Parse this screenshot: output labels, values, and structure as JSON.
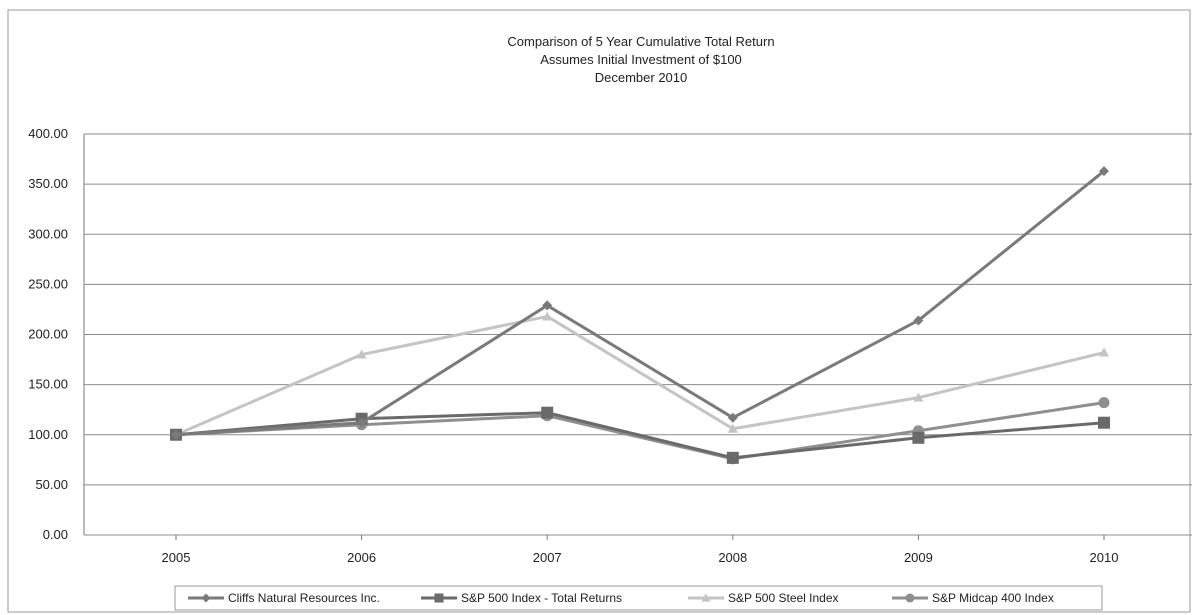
{
  "chart_data": {
    "type": "line",
    "title_lines": [
      "Comparison of 5 Year Cumulative Total Return",
      "Assumes Initial Investment of $100",
      "December 2010"
    ],
    "categories": [
      "2005",
      "2006",
      "2007",
      "2008",
      "2009",
      "2010"
    ],
    "ylim": [
      0,
      400
    ],
    "y_ticks": [
      "0.00",
      "50.00",
      "100.00",
      "150.00",
      "200.00",
      "250.00",
      "300.00",
      "350.00",
      "400.00"
    ],
    "grid": "horizontal",
    "legend_position": "bottom",
    "series": [
      {
        "name": "Cliffs Natural Resources Inc.",
        "color": "#7a7a7a",
        "marker": "diamond",
        "values": [
          100,
          112,
          229,
          117,
          214,
          363
        ]
      },
      {
        "name": "S&P 500 Index - Total Returns",
        "color": "#6a6a6a",
        "marker": "square",
        "values": [
          100,
          116,
          122,
          77,
          97,
          112
        ]
      },
      {
        "name": "S&P 500 Steel Index",
        "color": "#c4c4c4",
        "marker": "triangle",
        "values": [
          100,
          180,
          218,
          106,
          137,
          182
        ]
      },
      {
        "name": "S&P Midcap 400 Index",
        "color": "#8f8f8f",
        "marker": "circle",
        "values": [
          100,
          110,
          119,
          76,
          104,
          132
        ]
      }
    ]
  }
}
